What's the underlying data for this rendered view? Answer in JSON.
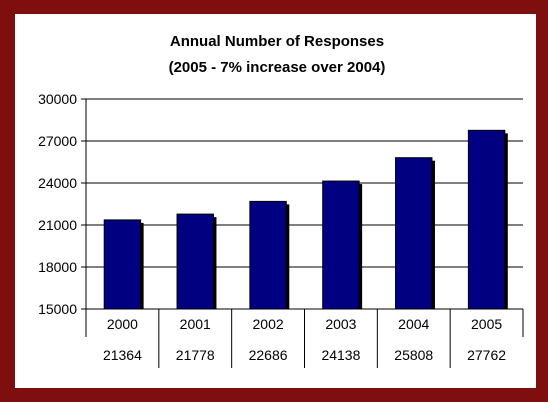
{
  "colors": {
    "frame": "#7f0f0f",
    "bar": "#000080"
  },
  "chart_data": {
    "type": "bar",
    "title": [
      "Annual Number of Responses",
      "(2005 - 7% increase over 2004)"
    ],
    "categories": [
      "2000",
      "2001",
      "2002",
      "2003",
      "2004",
      "2005"
    ],
    "values": [
      21364,
      21778,
      22686,
      24138,
      25808,
      27762
    ],
    "ylim": [
      15000,
      30000
    ],
    "yticks": [
      15000,
      18000,
      21000,
      24000,
      27000,
      30000
    ],
    "ytick_labels": [
      "15000",
      "18000",
      "21000",
      "24000",
      "27000",
      "30000"
    ],
    "value_labels": [
      "21364",
      "21778",
      "22686",
      "24138",
      "25808",
      "27762"
    ],
    "grid": true,
    "data_table": true
  }
}
